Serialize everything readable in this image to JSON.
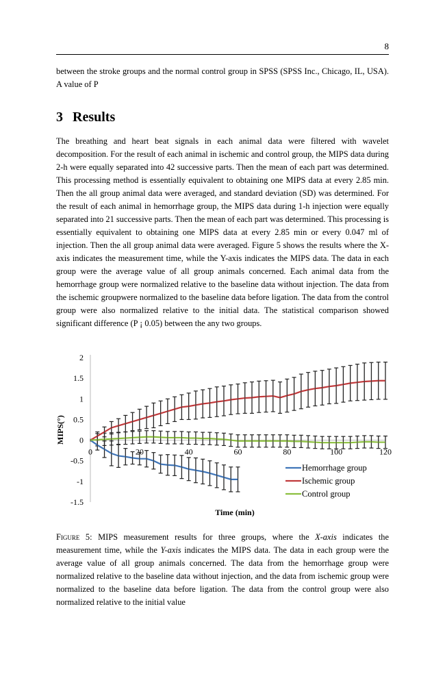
{
  "page_number": "8",
  "intro_text": "between the stroke groups and the normal control group in SPSS (SPSS Inc., Chicago, IL, USA). A value of P",
  "section": {
    "number": "3",
    "title": "Results"
  },
  "paragraph": "The breathing and heart beat signals in each animal data were filtered with wavelet decomposition. For the result of each animal in ischemic and control group, the MIPS data during 2-h were equally separated into 42 successive parts. Then the mean of each part was determined. This processing method is essentially equivalent to obtaining one MIPS data at every 2.85 min. Then the all group animal data were averaged, and standard deviation (SD) was determined. For the result of each animal in hemorrhage group, the MIPS data during 1-h injection were equally separated into 21 successive parts. Then the mean of each part was determined. This processing is essentially equivalent to obtaining one MIPS data at every 2.85 min or every 0.047 ml of injection. Then the all group animal data were averaged. Figure 5 shows the results where the X-axis indicates the measurement time, while the Y-axis indicates the MIPS data. The data in each group were the average value of all group animals concerned. Each animal data from the hemorrhage group were normalized relative to the baseline data without injection. The data from the ischemic groupwere normalized to the baseline data before ligation. The data from the control group were also normalized relative to the initial data. The statistical comparison showed significant difference (P ¡ 0.05) between the any two groups.",
  "caption": {
    "label": "Figure 5:",
    "part1": " MIPS measurement results for three groups, where the ",
    "xaxis": "X-axis",
    "part2": " indicates the measurement time, while the ",
    "yaxis": "Y-axis",
    "part3": " indicates the MIPS data. The data in each group were the average value of all group animals concerned. The data from the hemorrhage group were normalized relative to the baseline data without injection, and the data from ischemic group were normalized to the baseline data before ligation. The data from the control group were also normalized relative to the initial value"
  },
  "chart_data": {
    "type": "line",
    "xlabel": "Time (min)",
    "ylabel": "MIPS(°)",
    "xlim": [
      0,
      120
    ],
    "ylim": [
      -1.5,
      2
    ],
    "xticks": [
      "0",
      "20",
      "40",
      "60",
      "80",
      "100",
      "120"
    ],
    "yticks": [
      "2",
      "1.5",
      "1",
      "0.5",
      "0",
      "-0.5",
      "-1",
      "-1.5"
    ],
    "grid": false,
    "legend_position": "bottom-right",
    "x_step_min": 2.857,
    "series": [
      {
        "name": "Hemorrhage group",
        "color": "#3f75b8",
        "values": [
          0,
          -0.12,
          -0.22,
          -0.32,
          -0.38,
          -0.4,
          -0.43,
          -0.45,
          -0.45,
          -0.5,
          -0.58,
          -0.6,
          -0.61,
          -0.65,
          -0.7,
          -0.73,
          -0.76,
          -0.8,
          -0.85,
          -0.9,
          -0.95,
          -0.95
        ],
        "sd": [
          0,
          0.12,
          0.2,
          0.3,
          0.28,
          0.2,
          0.15,
          0.15,
          0.2,
          0.2,
          0.22,
          0.25,
          0.25,
          0.28,
          0.28,
          0.3,
          0.3,
          0.3,
          0.3,
          0.3,
          0.3,
          0.3
        ]
      },
      {
        "name": "Ischemic group",
        "color": "#c0393b",
        "values": [
          0,
          0.1,
          0.2,
          0.3,
          0.35,
          0.4,
          0.45,
          0.5,
          0.55,
          0.6,
          0.65,
          0.7,
          0.75,
          0.8,
          0.82,
          0.85,
          0.88,
          0.9,
          0.93,
          0.95,
          0.98,
          1.0,
          1.02,
          1.03,
          1.05,
          1.06,
          1.07,
          1.03,
          1.08,
          1.12,
          1.18,
          1.22,
          1.25,
          1.27,
          1.3,
          1.32,
          1.35,
          1.38,
          1.4,
          1.42,
          1.43,
          1.44,
          1.44
        ],
        "sd": [
          0,
          0.1,
          0.12,
          0.15,
          0.17,
          0.2,
          0.22,
          0.25,
          0.27,
          0.3,
          0.3,
          0.3,
          0.3,
          0.3,
          0.32,
          0.34,
          0.34,
          0.35,
          0.36,
          0.36,
          0.36,
          0.36,
          0.37,
          0.38,
          0.38,
          0.38,
          0.38,
          0.38,
          0.4,
          0.4,
          0.42,
          0.42,
          0.42,
          0.42,
          0.42,
          0.43,
          0.43,
          0.43,
          0.44,
          0.45,
          0.45,
          0.45,
          0.45
        ]
      },
      {
        "name": "Control group",
        "color": "#8cbf3f",
        "values": [
          0,
          0.01,
          0.02,
          0.03,
          0.04,
          0.05,
          0.06,
          0.07,
          0.08,
          0.08,
          0.07,
          0.06,
          0.06,
          0.06,
          0.05,
          0.05,
          0.04,
          0.04,
          0.03,
          0.02,
          0,
          -0.02,
          -0.02,
          -0.02,
          -0.02,
          -0.02,
          -0.02,
          -0.02,
          -0.02,
          -0.03,
          -0.03,
          -0.04,
          -0.05,
          -0.06,
          -0.06,
          -0.06,
          -0.06,
          -0.06,
          -0.05,
          -0.04,
          -0.04,
          -0.05,
          -0.05
        ],
        "sd": [
          0,
          0.15,
          0.15,
          0.15,
          0.15,
          0.15,
          0.15,
          0.15,
          0.15,
          0.15,
          0.15,
          0.15,
          0.15,
          0.15,
          0.15,
          0.15,
          0.15,
          0.15,
          0.15,
          0.15,
          0.15,
          0.15,
          0.15,
          0.15,
          0.15,
          0.15,
          0.15,
          0.15,
          0.15,
          0.15,
          0.15,
          0.15,
          0.15,
          0.15,
          0.15,
          0.15,
          0.15,
          0.15,
          0.15,
          0.15,
          0.15,
          0.15,
          0.15
        ]
      }
    ]
  }
}
